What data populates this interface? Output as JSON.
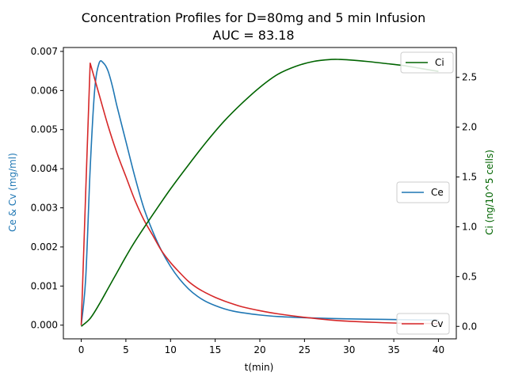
{
  "chart_data": {
    "type": "line",
    "title": "Concentration Profiles for D=80mg and 5 min Infusion",
    "subtitle": "AUC = 83.18",
    "xlabel": "t(min)",
    "ylabel_left": "Ce & Cv (mg/ml)",
    "ylabel_right": "Ci (ng/10^5 cells)",
    "xlim": [
      -2,
      42
    ],
    "ylim_left": [
      -0.00035,
      0.0071
    ],
    "ylim_right": [
      -0.125,
      2.8
    ],
    "x_ticks": [
      0,
      5,
      10,
      15,
      20,
      25,
      30,
      35,
      40
    ],
    "y_ticks_left": [
      0.0,
      0.001,
      0.002,
      0.003,
      0.004,
      0.005,
      0.006,
      0.007
    ],
    "y_ticks_left_labels": [
      "0.000",
      "0.001",
      "0.002",
      "0.003",
      "0.004",
      "0.005",
      "0.006",
      "0.007"
    ],
    "y_ticks_right": [
      0.0,
      0.5,
      1.0,
      1.5,
      2.0,
      2.5
    ],
    "y_ticks_right_labels": [
      "0.0",
      "0.5",
      "1.0",
      "1.5",
      "2.0",
      "2.5"
    ],
    "grid": false,
    "series": [
      {
        "name": "Ce",
        "axis": "left",
        "color": "#1f77b4",
        "legend_position": "center-right",
        "x": [
          0,
          0.5,
          1,
          1.5,
          2,
          2.5,
          3,
          3.5,
          4,
          5,
          6,
          7,
          8,
          9,
          10,
          11,
          12,
          13,
          14,
          15,
          16,
          17,
          18,
          20,
          22,
          25,
          28,
          30,
          33,
          36,
          40
        ],
        "y": [
          0,
          0.0012,
          0.004,
          0.006,
          0.0067,
          0.0067,
          0.0065,
          0.0061,
          0.0056,
          0.0047,
          0.0038,
          0.003,
          0.0024,
          0.0019,
          0.0015,
          0.00118,
          0.00093,
          0.00074,
          0.0006,
          0.0005,
          0.00042,
          0.00036,
          0.00032,
          0.00026,
          0.00022,
          0.00019,
          0.00017,
          0.00016,
          0.00015,
          0.00014,
          0.00013
        ]
      },
      {
        "name": "Cv",
        "axis": "left",
        "color": "#d62728",
        "legend_position": "bottom-right",
        "x": [
          0,
          0.5,
          1,
          2,
          3,
          4,
          5,
          6,
          7,
          8,
          9,
          10,
          11,
          12,
          13,
          14,
          15,
          16,
          17,
          18,
          20,
          22,
          25,
          28,
          30,
          33,
          36,
          40
        ],
        "y": [
          0,
          0.0034,
          0.0067,
          0.0059,
          0.0051,
          0.0044,
          0.0038,
          0.0032,
          0.0027,
          0.0023,
          0.0019,
          0.0016,
          0.00135,
          0.00112,
          0.00095,
          0.00082,
          0.00071,
          0.00062,
          0.00054,
          0.00047,
          0.00037,
          0.00029,
          0.0002,
          0.00013,
          0.0001,
          7e-05,
          5e-05,
          4e-05
        ]
      },
      {
        "name": "Ci",
        "axis": "right",
        "color": "#006400",
        "legend_position": "top-right",
        "x": [
          0,
          1,
          2,
          3,
          4,
          5,
          6,
          8,
          10,
          12,
          14,
          16,
          18,
          20,
          22,
          24,
          26,
          28,
          29,
          30,
          32,
          34,
          36,
          38,
          40
        ],
        "y": [
          0,
          0.08,
          0.22,
          0.38,
          0.54,
          0.7,
          0.85,
          1.12,
          1.38,
          1.62,
          1.85,
          2.06,
          2.24,
          2.4,
          2.53,
          2.61,
          2.66,
          2.68,
          2.68,
          2.675,
          2.66,
          2.64,
          2.62,
          2.59,
          2.56
        ]
      }
    ]
  }
}
